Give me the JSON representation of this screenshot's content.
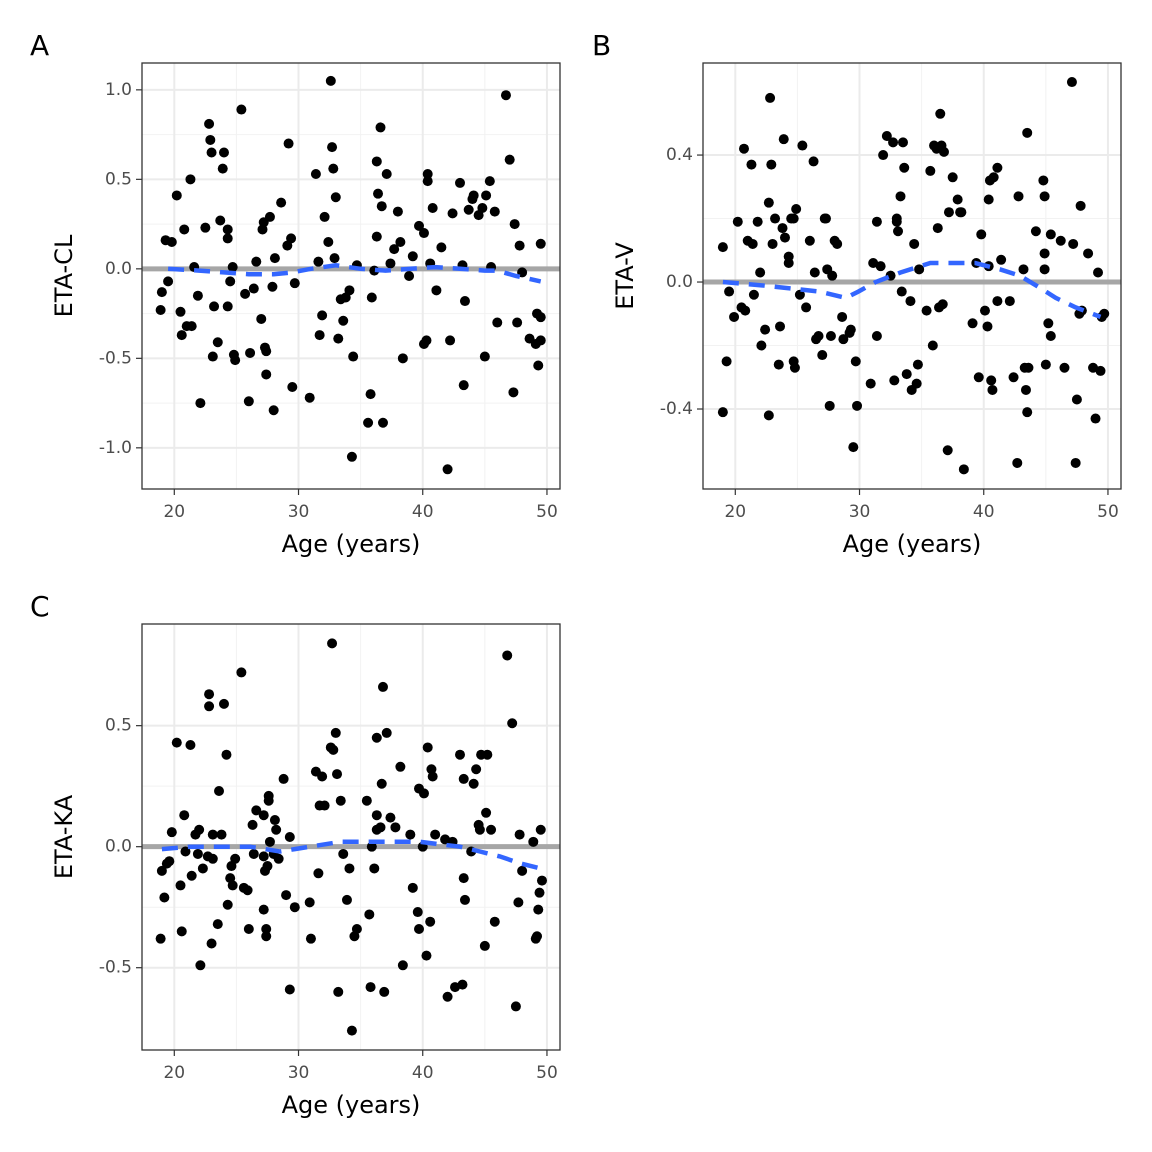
{
  "chart_data": [
    {
      "type": "scatter",
      "panel": "A",
      "xlabel": "Age (years)",
      "ylabel": "ETA-CL",
      "xlim": [
        17.4,
        51.05
      ],
      "ylim": [
        -1.23,
        1.15
      ],
      "xticks": [
        20,
        30,
        40,
        50
      ],
      "yticks": [
        {
          "value": -1,
          "label": "-1.0"
        },
        {
          "value": -0.5,
          "label": "-0.5"
        },
        {
          "value": 0,
          "label": "0.0"
        },
        {
          "value": 0.5,
          "label": "0.5"
        },
        {
          "value": 1,
          "label": "1.0"
        }
      ],
      "grid": true,
      "points": {
        "color": "#000000",
        "x": [
          18.9,
          19.0,
          19.3,
          19.5,
          19.8,
          20.2,
          20.5,
          20.6,
          20.8,
          21.0,
          21.3,
          21.4,
          21.6,
          21.9,
          22.1,
          22.5,
          22.8,
          22.9,
          23.0,
          23.1,
          23.2,
          23.5,
          23.7,
          23.9,
          24.0,
          24.3,
          24.3,
          24.3,
          24.5,
          24.7,
          24.8,
          24.9,
          25.4,
          25.7,
          26.0,
          26.1,
          26.4,
          26.6,
          27.0,
          27.1,
          27.2,
          27.3,
          27.4,
          27.4,
          27.7,
          27.9,
          28.0,
          28.1,
          28.6,
          29.1,
          29.2,
          29.4,
          29.5,
          29.7,
          30.9,
          31.4,
          31.6,
          31.7,
          31.9,
          32.1,
          32.4,
          32.6,
          32.7,
          32.8,
          32.9,
          33.0,
          33.2,
          33.4,
          33.6,
          33.8,
          34.1,
          34.3,
          34.4,
          34.7,
          35.6,
          35.8,
          35.9,
          36.1,
          36.3,
          36.3,
          36.4,
          36.6,
          36.7,
          36.8,
          37.1,
          37.4,
          37.7,
          38.0,
          38.2,
          38.4,
          38.9,
          39.2,
          39.7,
          40.1,
          40.1,
          40.3,
          40.4,
          40.4,
          40.6,
          40.8,
          41.1,
          41.5,
          42.0,
          42.2,
          42.4,
          43.0,
          43.2,
          43.3,
          43.4,
          43.7,
          44.0,
          44.1,
          44.5,
          44.8,
          45.0,
          45.1,
          45.4,
          45.5,
          45.8,
          46.0,
          46.7,
          47.0,
          47.3,
          47.4,
          47.6,
          47.8,
          48.0,
          48.6,
          49.1,
          49.2,
          49.3,
          49.5,
          49.5,
          49.5
        ],
        "y": [
          -0.23,
          -0.13,
          0.16,
          -0.07,
          0.15,
          0.41,
          -0.24,
          -0.37,
          0.22,
          -0.32,
          0.5,
          -0.32,
          0.01,
          -0.15,
          -0.75,
          0.23,
          0.81,
          0.72,
          0.65,
          -0.49,
          -0.21,
          -0.41,
          0.27,
          0.56,
          0.65,
          0.22,
          0.17,
          -0.21,
          -0.07,
          0.01,
          -0.48,
          -0.51,
          0.89,
          -0.14,
          -0.74,
          -0.47,
          -0.11,
          0.04,
          -0.28,
          0.22,
          0.26,
          -0.44,
          -0.46,
          -0.59,
          0.29,
          -0.1,
          -0.79,
          0.06,
          0.37,
          0.13,
          0.7,
          0.17,
          -0.66,
          -0.08,
          -0.72,
          0.53,
          0.04,
          -0.37,
          -0.26,
          0.29,
          0.15,
          1.05,
          0.68,
          0.56,
          0.06,
          0.4,
          -0.39,
          -0.17,
          -0.29,
          -0.16,
          -0.12,
          -1.05,
          -0.49,
          0.02,
          -0.86,
          -0.7,
          -0.16,
          -0.01,
          0.18,
          0.6,
          0.42,
          0.79,
          0.35,
          -0.86,
          0.53,
          0.03,
          0.11,
          0.32,
          0.15,
          -0.5,
          -0.04,
          0.07,
          0.24,
          -0.42,
          0.2,
          -0.4,
          0.49,
          0.53,
          0.03,
          0.34,
          -0.12,
          0.12,
          -1.12,
          -0.4,
          0.31,
          0.48,
          0.02,
          -0.65,
          -0.18,
          0.33,
          0.39,
          0.41,
          0.3,
          0.34,
          -0.49,
          0.41,
          0.49,
          0.01,
          0.32,
          -0.3,
          0.97,
          0.61,
          -0.69,
          0.25,
          -0.3,
          0.13,
          -0.02,
          -0.39,
          -0.42,
          -0.25,
          -0.54,
          -0.4,
          0.14,
          -0.27
        ]
      },
      "smooth": {
        "color": "#3366ff",
        "x": [
          19.5,
          22,
          24,
          26,
          28,
          29.5,
          31,
          33,
          35,
          37,
          39,
          41,
          43,
          45,
          46,
          47.5,
          49.5
        ],
        "y": [
          0,
          -0.01,
          -0.02,
          -0.03,
          -0.03,
          -0.02,
          0,
          0.02,
          0,
          -0.01,
          0,
          0.01,
          0,
          -0.01,
          -0.01,
          -0.04,
          -0.07
        ]
      },
      "hline": {
        "value": 0,
        "color": "#a6a6a6"
      }
    },
    {
      "type": "scatter",
      "panel": "B",
      "xlabel": "Age (years)",
      "ylabel": "ETA-V",
      "xlim": [
        17.4,
        51.05
      ],
      "ylim": [
        -0.652,
        0.69
      ],
      "xticks": [
        20,
        30,
        40,
        50
      ],
      "yticks": [
        {
          "value": -0.4,
          "label": "-0.4"
        },
        {
          "value": 0,
          "label": "0.0"
        },
        {
          "value": 0.4,
          "label": "0.4"
        }
      ],
      "grid": true,
      "points": {
        "color": "#000000",
        "x": [
          19.0,
          19.0,
          19.3,
          19.5,
          19.9,
          20.2,
          20.5,
          20.7,
          20.8,
          21.0,
          21.3,
          21.4,
          21.5,
          21.8,
          22.0,
          22.1,
          22.4,
          22.7,
          22.7,
          22.8,
          22.9,
          23.0,
          23.2,
          23.5,
          23.6,
          23.8,
          23.9,
          24.0,
          24.3,
          24.3,
          24.5,
          24.7,
          24.7,
          24.8,
          24.9,
          25.2,
          25.4,
          25.7,
          26.0,
          26.3,
          26.4,
          26.5,
          26.7,
          27.0,
          27.2,
          27.3,
          27.4,
          27.6,
          27.7,
          27.8,
          28.0,
          28.2,
          28.6,
          28.7,
          29.2,
          29.3,
          29.5,
          29.7,
          29.8,
          30.9,
          31.1,
          31.4,
          31.4,
          31.7,
          31.9,
          32.2,
          32.5,
          32.7,
          32.8,
          33.0,
          33.0,
          33.1,
          33.3,
          33.4,
          33.5,
          33.6,
          33.8,
          34.1,
          34.2,
          34.4,
          34.6,
          34.7,
          34.8,
          35.4,
          35.7,
          35.9,
          36.0,
          36.2,
          36.3,
          36.4,
          36.5,
          36.6,
          36.7,
          36.8,
          37.1,
          37.2,
          37.5,
          37.9,
          38.1,
          38.2,
          38.4,
          39.1,
          39.4,
          39.6,
          39.8,
          40.1,
          40.3,
          40.4,
          40.4,
          40.5,
          40.6,
          40.7,
          40.8,
          41.1,
          41.1,
          41.4,
          42.1,
          42.4,
          42.7,
          42.8,
          43.2,
          43.3,
          43.4,
          43.5,
          43.5,
          43.6,
          44.2,
          44.8,
          44.9,
          44.9,
          44.9,
          45.0,
          45.2,
          45.4,
          45.4,
          46.2,
          46.5,
          47.1,
          47.2,
          47.4,
          47.5,
          47.7,
          47.8,
          47.9,
          48.4,
          48.8,
          49.0,
          49.2,
          49.4,
          49.5,
          49.7
        ],
        "y": [
          0.11,
          -0.41,
          -0.25,
          -0.03,
          -0.11,
          0.19,
          -0.08,
          0.42,
          -0.09,
          0.13,
          0.37,
          0.12,
          -0.04,
          0.19,
          0.03,
          -0.2,
          -0.15,
          0.25,
          -0.42,
          0.58,
          0.37,
          0.12,
          0.2,
          -0.26,
          -0.14,
          0.17,
          0.45,
          0.14,
          0.08,
          0.06,
          0.2,
          -0.25,
          0.2,
          -0.27,
          0.23,
          -0.04,
          0.43,
          -0.08,
          0.13,
          0.38,
          0.03,
          -0.18,
          -0.17,
          -0.23,
          0.2,
          0.2,
          0.04,
          -0.39,
          -0.17,
          0.02,
          0.13,
          0.12,
          -0.11,
          -0.18,
          -0.16,
          -0.15,
          -0.52,
          -0.25,
          -0.39,
          -0.32,
          0.06,
          0.19,
          -0.17,
          0.05,
          0.4,
          0.46,
          0.02,
          0.44,
          -0.31,
          0.2,
          0.19,
          0.16,
          0.27,
          -0.03,
          0.44,
          0.36,
          -0.29,
          -0.06,
          -0.34,
          0.12,
          -0.32,
          -0.26,
          0.04,
          -0.09,
          0.35,
          -0.2,
          0.43,
          0.42,
          0.17,
          -0.08,
          0.53,
          0.43,
          -0.07,
          0.41,
          -0.53,
          0.22,
          0.33,
          0.26,
          0.22,
          0.22,
          -0.59,
          -0.13,
          0.06,
          -0.3,
          0.15,
          -0.09,
          -0.14,
          0.26,
          0.05,
          0.32,
          -0.31,
          -0.34,
          0.33,
          -0.06,
          0.36,
          0.07,
          -0.06,
          -0.3,
          -0.57,
          0.27,
          0.04,
          -0.27,
          -0.34,
          -0.41,
          0.47,
          -0.27,
          0.16,
          0.32,
          0.27,
          0.09,
          0.04,
          -0.26,
          -0.13,
          0.15,
          -0.17,
          0.13,
          -0.27,
          0.63,
          0.12,
          -0.57,
          -0.37,
          -0.1,
          0.24,
          -0.09,
          0.09,
          -0.27,
          -0.43,
          0.03,
          -0.28,
          -0.11,
          -0.1
        ]
      },
      "smooth": {
        "color": "#3366ff",
        "x": [
          19.0,
          22.0,
          24.4,
          26.8,
          28.9,
          29.9,
          31.3,
          33.3,
          35.7,
          37.3,
          39.3,
          41.3,
          42.9,
          44.6,
          45.8,
          47.4,
          49.4
        ],
        "y": [
          0,
          -0.01,
          -0.02,
          -0.03,
          -0.05,
          -0.03,
          0,
          0.03,
          0.06,
          0.06,
          0.06,
          0.04,
          0.02,
          -0.02,
          -0.05,
          -0.08,
          -0.11
        ]
      },
      "hline": {
        "value": 0,
        "color": "#a6a6a6"
      }
    },
    {
      "type": "scatter",
      "panel": "C",
      "xlabel": "Age (years)",
      "ylabel": "ETA-KA",
      "xlim": [
        17.4,
        51.05
      ],
      "ylim": [
        -0.84,
        0.92
      ],
      "xticks": [
        20,
        30,
        40,
        50
      ],
      "yticks": [
        {
          "value": -0.5,
          "label": "-0.5"
        },
        {
          "value": 0,
          "label": "0.0"
        },
        {
          "value": 0.5,
          "label": "0.5"
        }
      ],
      "grid": true,
      "points": {
        "color": "#000000",
        "x": [
          18.9,
          19.0,
          19.2,
          19.4,
          19.6,
          19.8,
          20.2,
          20.5,
          20.6,
          20.8,
          20.9,
          21.3,
          21.4,
          21.7,
          21.9,
          22.0,
          22.1,
          22.3,
          22.7,
          22.8,
          22.8,
          23.0,
          23.1,
          23.1,
          23.5,
          23.6,
          23.8,
          24.0,
          24.2,
          24.3,
          24.5,
          24.6,
          24.7,
          24.9,
          25.4,
          25.6,
          25.9,
          26.0,
          26.3,
          26.4,
          26.6,
          27.2,
          27.2,
          27.2,
          27.3,
          27.4,
          27.4,
          27.5,
          27.6,
          27.6,
          27.7,
          28.0,
          28.1,
          28.2,
          28.4,
          28.8,
          29.0,
          29.3,
          29.3,
          29.7,
          30.9,
          31.0,
          31.4,
          31.6,
          31.7,
          31.9,
          32.1,
          32.6,
          32.7,
          32.8,
          33.0,
          33.1,
          33.2,
          33.4,
          33.6,
          33.9,
          34.1,
          34.3,
          34.5,
          34.7,
          35.5,
          35.7,
          35.8,
          35.9,
          36.1,
          36.3,
          36.3,
          36.3,
          36.6,
          36.7,
          36.8,
          36.9,
          37.1,
          37.4,
          37.8,
          38.2,
          38.4,
          39.0,
          39.2,
          39.6,
          39.7,
          39.7,
          40.0,
          40.1,
          40.3,
          40.4,
          40.6,
          40.7,
          40.8,
          41.0,
          41.8,
          42.0,
          42.4,
          42.6,
          43.0,
          43.2,
          43.3,
          43.3,
          43.4,
          43.9,
          44.1,
          44.3,
          44.5,
          44.6,
          44.7,
          45.0,
          45.1,
          45.2,
          45.5,
          45.8,
          46.8,
          47.2,
          47.5,
          47.7,
          47.8,
          48.0,
          48.9,
          49.1,
          49.2,
          49.3,
          49.4,
          49.5,
          49.6
        ],
        "y": [
          -0.38,
          -0.1,
          -0.21,
          -0.07,
          -0.06,
          0.06,
          0.43,
          -0.16,
          -0.35,
          0.13,
          -0.02,
          0.42,
          -0.12,
          0.05,
          -0.03,
          0.07,
          -0.49,
          -0.09,
          -0.04,
          0.58,
          0.63,
          -0.4,
          0.05,
          -0.05,
          -0.32,
          0.23,
          0.05,
          0.59,
          0.38,
          -0.24,
          -0.13,
          -0.08,
          -0.16,
          -0.05,
          0.72,
          -0.17,
          -0.18,
          -0.34,
          0.09,
          -0.03,
          0.15,
          -0.04,
          0.13,
          -0.26,
          -0.1,
          -0.34,
          -0.37,
          -0.08,
          0.21,
          0.19,
          0.02,
          -0.03,
          0.11,
          0.07,
          -0.05,
          0.28,
          -0.2,
          0.04,
          -0.59,
          -0.25,
          -0.23,
          -0.38,
          0.31,
          -0.11,
          0.17,
          0.29,
          0.17,
          0.41,
          0.84,
          0.4,
          0.47,
          0.3,
          -0.6,
          0.19,
          -0.03,
          -0.22,
          -0.09,
          -0.76,
          -0.37,
          -0.34,
          0.19,
          -0.28,
          -0.58,
          0.0,
          -0.09,
          0.13,
          0.45,
          0.07,
          0.08,
          0.26,
          0.66,
          -0.6,
          0.47,
          0.12,
          0.08,
          0.33,
          -0.49,
          0.05,
          -0.17,
          -0.27,
          0.24,
          -0.34,
          0.0,
          0.22,
          -0.45,
          0.41,
          -0.31,
          0.32,
          0.29,
          0.05,
          0.03,
          -0.62,
          0.02,
          -0.58,
          0.38,
          -0.57,
          0.28,
          -0.13,
          -0.22,
          -0.02,
          0.26,
          0.32,
          0.09,
          0.07,
          0.38,
          -0.41,
          0.14,
          0.38,
          0.07,
          -0.31,
          0.79,
          0.51,
          -0.66,
          -0.23,
          0.05,
          -0.1,
          0.02,
          -0.38,
          -0.37,
          -0.26,
          -0.19,
          0.07,
          -0.14
        ]
      },
      "smooth": {
        "color": "#3366ff",
        "x": [
          19.0,
          21.3,
          23.7,
          26.1,
          28.5,
          29.7,
          30.9,
          33.4,
          35.8,
          37.8,
          39.8,
          41.4,
          43.0,
          44.6,
          46.2,
          47.9,
          49.5
        ],
        "y": [
          -0.01,
          0,
          0,
          0,
          -0.02,
          -0.01,
          0,
          0.02,
          0.02,
          0.02,
          0.02,
          0.01,
          0,
          -0.02,
          -0.04,
          -0.07,
          -0.09
        ]
      },
      "hline": {
        "value": 0,
        "color": "#a6a6a6"
      }
    }
  ]
}
